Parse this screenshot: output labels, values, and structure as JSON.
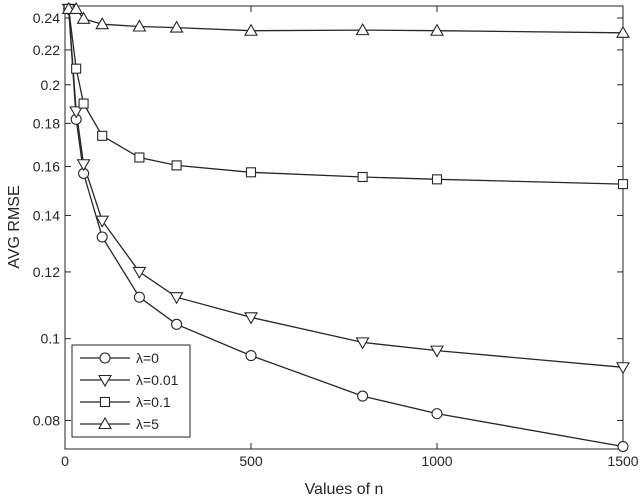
{
  "chart_data": {
    "type": "line",
    "title": "",
    "xlabel": "Values of n",
    "ylabel": "AVG RMSE",
    "xlim": [
      0,
      1500
    ],
    "ylim": [
      0.074,
      0.248
    ],
    "yscale": "log",
    "xticks": [
      0,
      500,
      1000,
      1500
    ],
    "yticks": [
      0.08,
      0.1,
      0.12,
      0.14,
      0.16,
      0.18,
      0.2,
      0.22,
      0.24
    ],
    "grid": false,
    "legend_position": "bottom-left",
    "x": [
      10,
      30,
      50,
      100,
      200,
      300,
      500,
      800,
      1000,
      1500
    ],
    "series": [
      {
        "name": "λ=0",
        "marker": "circle",
        "values": [
          0.246,
          0.182,
          0.157,
          0.132,
          0.112,
          0.104,
          0.0955,
          0.0855,
          0.0815,
          0.0745
        ]
      },
      {
        "name": "λ=0.01",
        "marker": "triangle-down",
        "values": [
          0.246,
          0.186,
          0.161,
          0.138,
          0.12,
          0.112,
          0.106,
          0.099,
          0.0968,
          0.0925
        ]
      },
      {
        "name": "λ=0.1",
        "marker": "square",
        "values": [
          0.246,
          0.209,
          0.19,
          0.174,
          0.164,
          0.1605,
          0.1575,
          0.1555,
          0.1545,
          0.1525
        ]
      },
      {
        "name": "λ=5",
        "marker": "triangle-up",
        "values": [
          0.246,
          0.246,
          0.2395,
          0.236,
          0.2345,
          0.2338,
          0.2318,
          0.2322,
          0.2318,
          0.2305
        ]
      }
    ]
  }
}
